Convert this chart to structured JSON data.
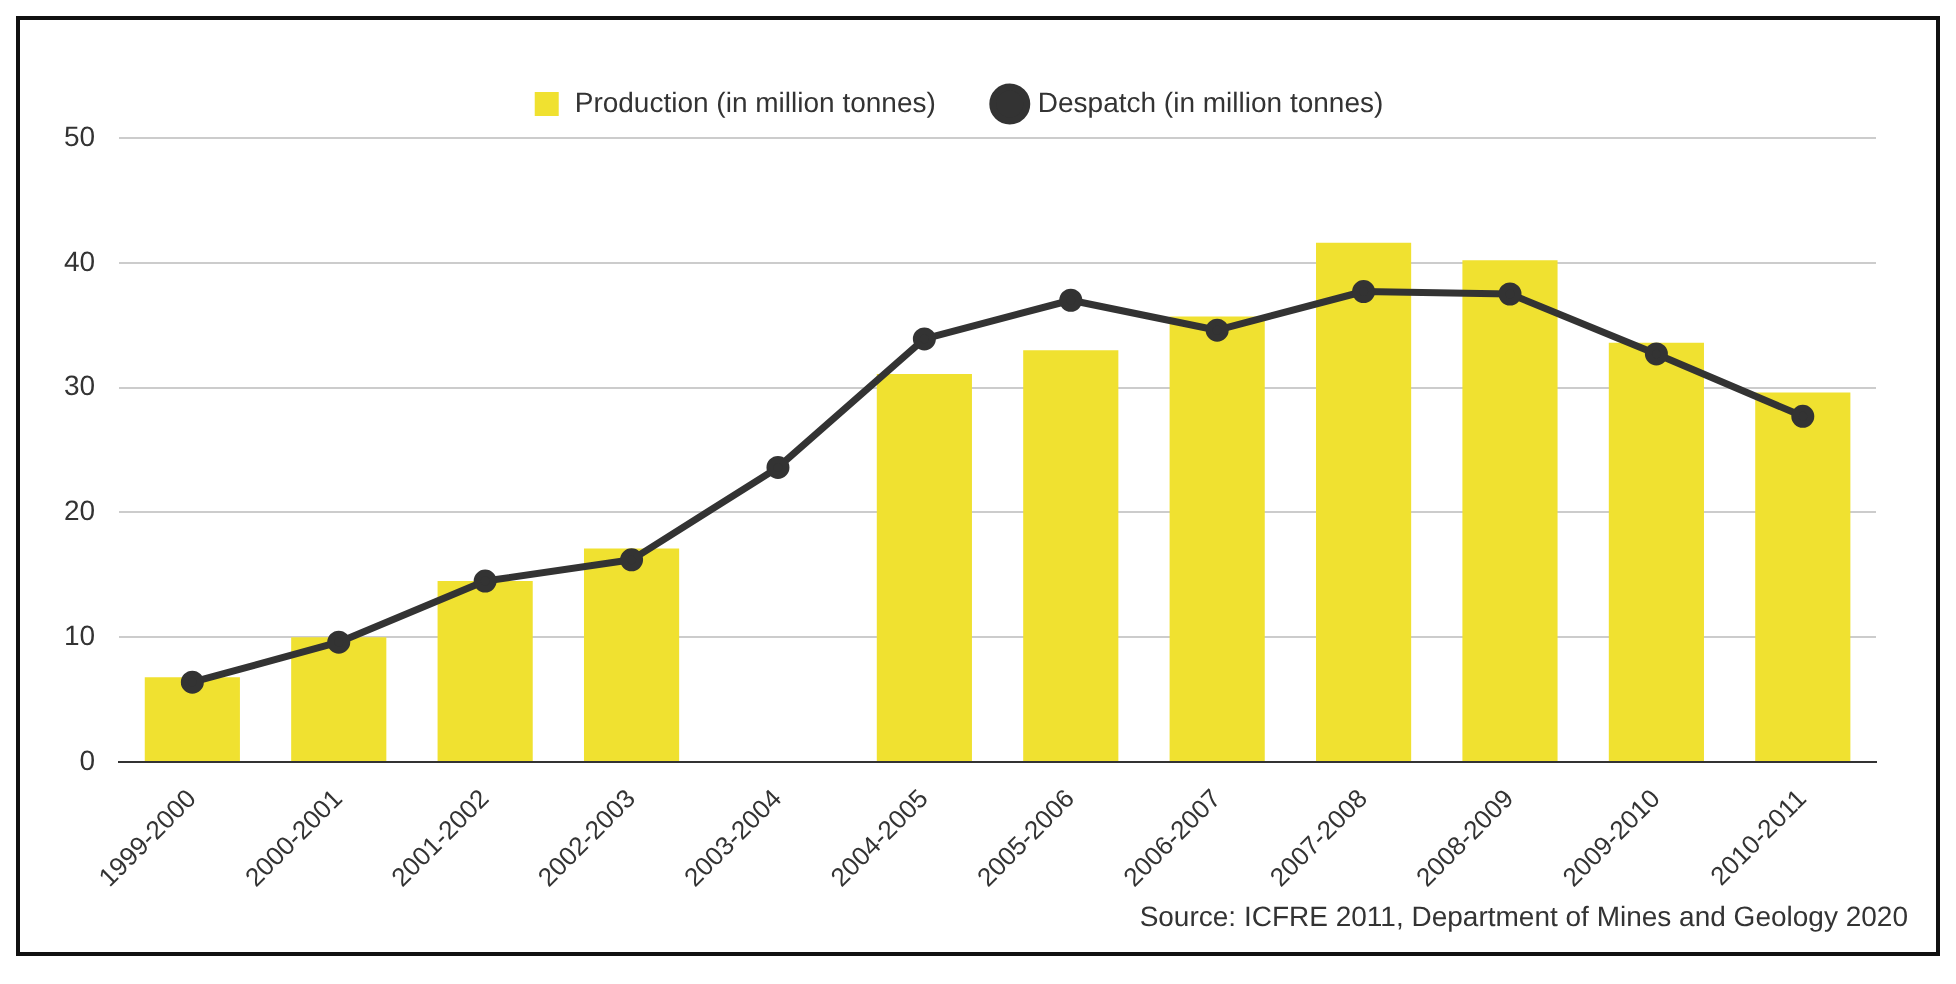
{
  "chart_data": {
    "type": "bar",
    "categories": [
      "1999-2000",
      "2000-2001",
      "2001-2002",
      "2002-2003",
      "2003-2004",
      "2004-2005",
      "2005-2006",
      "2006-2007",
      "2007-2008",
      "2008-2009",
      "2009-2010",
      "2010-2011"
    ],
    "series": [
      {
        "name": "Production (in million tonnes)",
        "color": "#f0e130",
        "values": [
          6.8,
          10.0,
          14.5,
          17.1,
          null,
          31.1,
          33.0,
          35.7,
          41.6,
          40.2,
          33.6,
          29.6
        ]
      },
      {
        "name": "Despatch (in million tonnes)",
        "type": "line",
        "color": "#333333",
        "values": [
          6.4,
          9.6,
          14.5,
          16.2,
          23.6,
          33.9,
          37.0,
          34.6,
          37.7,
          37.5,
          32.7,
          27.7
        ]
      }
    ],
    "ylim": [
      0,
      50
    ],
    "yticks": [
      0,
      10,
      20,
      30,
      40,
      50
    ],
    "grid": "y",
    "legend": "top",
    "marker": "circle",
    "annotations": [
      "Source: ICFRE 2011, Department of Mines and Geology 2020"
    ]
  }
}
